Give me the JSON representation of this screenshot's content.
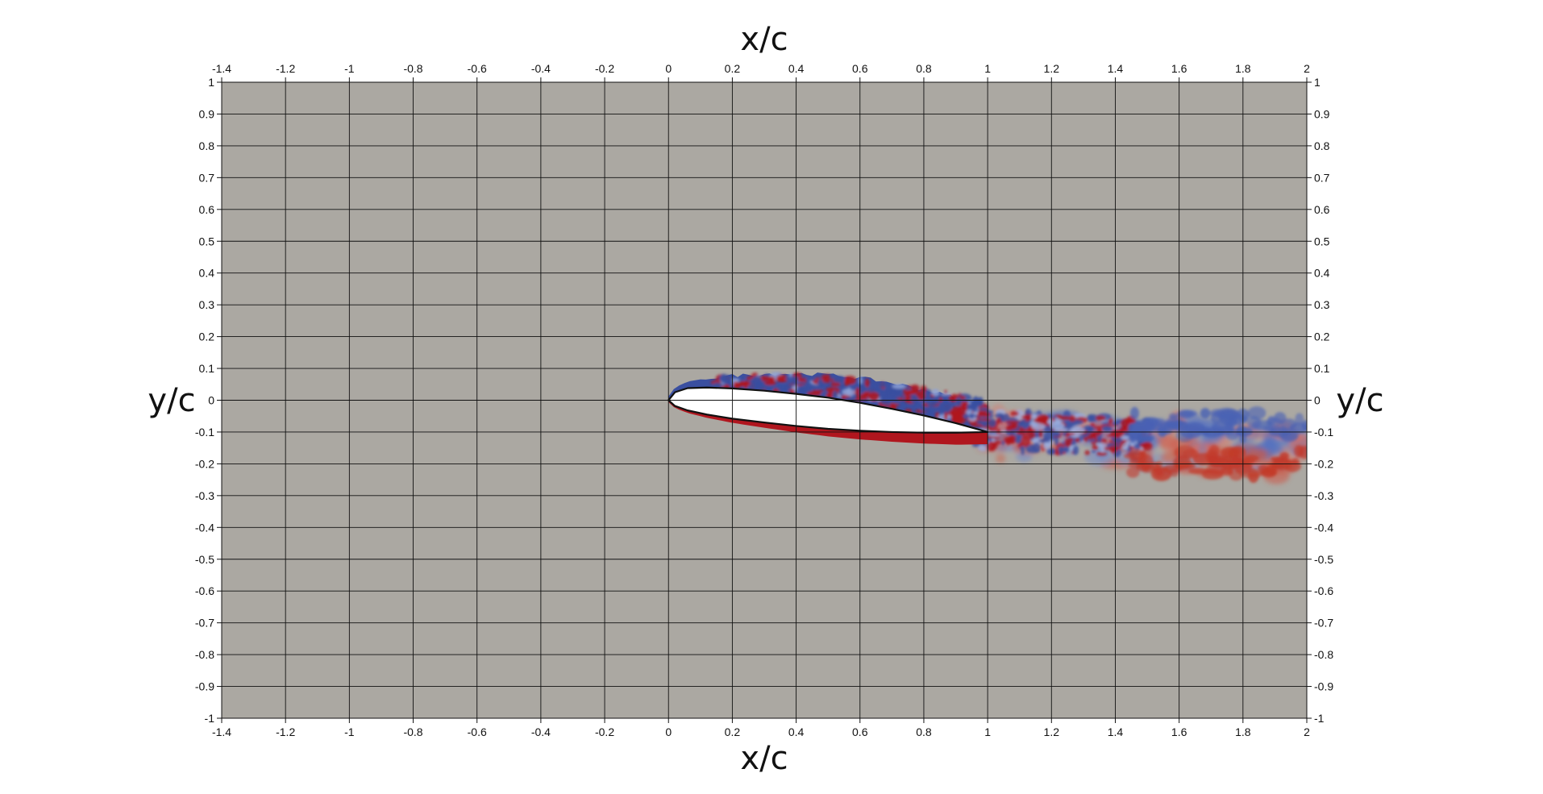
{
  "chart_data": {
    "type": "heatmap",
    "title": "",
    "xlabel": "x/c",
    "ylabel": "y/c",
    "xlim": [
      -1.4,
      2
    ],
    "ylim": [
      -1,
      1
    ],
    "grid": true,
    "grid_spacing": 0.2,
    "x_ticks": [
      -1.4,
      -1.2,
      -1,
      -0.8,
      -0.6,
      -0.4,
      -0.2,
      0,
      0.2,
      0.4,
      0.6,
      0.8,
      1,
      1.2,
      1.4,
      1.6,
      1.8,
      2
    ],
    "x_tick_labels": [
      "-1.4",
      "-1.2",
      "-1",
      "-0.8",
      "-0.6",
      "-0.4",
      "-0.2",
      "0",
      "0.2",
      "0.4",
      "0.6",
      "0.8",
      "1",
      "1.2",
      "1.4",
      "1.6",
      "1.8",
      "2"
    ],
    "y_ticks": [
      1,
      0.9,
      0.8,
      0.7,
      0.6,
      0.5,
      0.4,
      0.3,
      0.2,
      0.1,
      0,
      -0.1,
      -0.2,
      -0.3,
      -0.4,
      -0.5,
      -0.6,
      -0.7,
      -0.8,
      -0.9,
      -1
    ],
    "y_tick_labels": [
      "1",
      "0.9",
      "0.8",
      "0.7",
      "0.6",
      "0.5",
      "0.4",
      "0.3",
      "0.2",
      "0.1",
      "0",
      "-0.1",
      "-0.2",
      "-0.3",
      "-0.4",
      "-0.5",
      "-0.6",
      "-0.7",
      "-0.8",
      "-0.9",
      "-1"
    ],
    "airfoil": {
      "leading_edge": [
        0,
        0
      ],
      "trailing_edge": [
        1,
        -0.1
      ],
      "upper_surface": [
        [
          0,
          0
        ],
        [
          0.02,
          0.025
        ],
        [
          0.06,
          0.038
        ],
        [
          0.12,
          0.04
        ],
        [
          0.2,
          0.037
        ],
        [
          0.3,
          0.03
        ],
        [
          0.4,
          0.02
        ],
        [
          0.5,
          0.008
        ],
        [
          0.6,
          -0.008
        ],
        [
          0.7,
          -0.027
        ],
        [
          0.8,
          -0.048
        ],
        [
          0.9,
          -0.072
        ],
        [
          1.0,
          -0.1
        ]
      ],
      "lower_surface": [
        [
          0,
          0
        ],
        [
          0.02,
          -0.018
        ],
        [
          0.06,
          -0.032
        ],
        [
          0.12,
          -0.045
        ],
        [
          0.2,
          -0.058
        ],
        [
          0.3,
          -0.07
        ],
        [
          0.4,
          -0.081
        ],
        [
          0.5,
          -0.09
        ],
        [
          0.6,
          -0.096
        ],
        [
          0.7,
          -0.1
        ],
        [
          0.8,
          -0.102
        ],
        [
          0.9,
          -0.102
        ],
        [
          1.0,
          -0.1
        ]
      ]
    },
    "colors": {
      "background_field": "#aba8a2",
      "negative_vorticity": "#3a4fa0",
      "positive_vorticity": "#b0161e",
      "airfoil_fill": "#ffffff",
      "grid": "#111111"
    }
  }
}
